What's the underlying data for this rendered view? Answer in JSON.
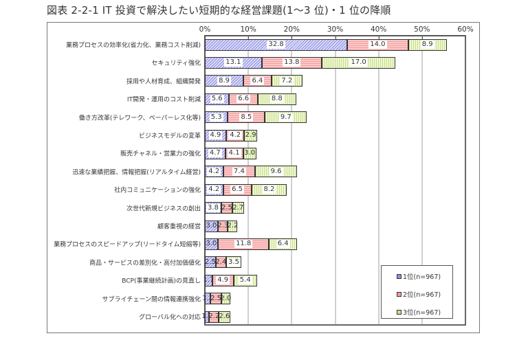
{
  "title": "図表 2-2-1  IT 投資で解決したい短期的な経営課題(1～3 位)・1 位の降順",
  "colors": {
    "rank1": "#c8c8f4",
    "rank2": "#f6b5b5",
    "rank3": "#dfeeb5",
    "axis": "#555555",
    "grid": "#cfcfcf"
  },
  "axis": {
    "ticks": [
      "0%",
      "10%",
      "20%",
      "30%",
      "40%",
      "50%",
      "60%"
    ]
  },
  "legend": {
    "items": [
      "1位(n=967)",
      "2位(n=967)",
      "3位(n=967)"
    ]
  },
  "chart_data": {
    "type": "bar",
    "orientation": "horizontal",
    "stacked": true,
    "title": "図表 2-2-1  IT 投資で解決したい短期的な経営課題(1～3 位)・1 位の降順",
    "xlabel": "",
    "ylabel": "",
    "xlim": [
      0,
      60
    ],
    "x_tick_labels": [
      "0%",
      "10%",
      "20%",
      "30%",
      "40%",
      "50%",
      "60%"
    ],
    "x_axis_position": "top",
    "grid": true,
    "legend_position": "bottom-right inside",
    "categories": [
      "業務プロセスの効率化(省力化、業務コスト削減)",
      "セキュリティ強化",
      "採用や人材育成、組織開発",
      "IT開発・運用のコスト削減",
      "働き方改革(テレワーク、ペーパーレス化等)",
      "ビジネスモデルの変革",
      "販売チャネル・営業力の強化",
      "迅速な業績把握、情報把握(リアルタイム経営)",
      "社内コミュニケーションの強化",
      "次世代新規ビジネスの創出",
      "顧客重視の経営",
      "業務プロセスのスピードアップ(リードタイム短縮等)",
      "商品・サービスの差別化・高付加価値化",
      "BCP(事業継続計画)の見直し",
      "サプライチェーン間の情報連携強化",
      "グローバル化への対応"
    ],
    "series": [
      {
        "name": "1位(n=967)",
        "values": [
          32.8,
          13.1,
          8.9,
          5.6,
          5.3,
          4.9,
          4.7,
          4.2,
          4.2,
          3.8,
          3.0,
          3.0,
          2.5,
          1.7,
          1.3,
          1.0
        ]
      },
      {
        "name": "2位(n=967)",
        "values": [
          14.0,
          13.8,
          6.4,
          6.6,
          8.5,
          4.2,
          4.1,
          7.4,
          6.5,
          2.5,
          2.3,
          11.8,
          2.4,
          4.9,
          2.5,
          2.2
        ]
      },
      {
        "name": "3位(n=967)",
        "values": [
          8.9,
          17.0,
          7.2,
          8.8,
          9.7,
          2.9,
          3.0,
          9.6,
          8.2,
          2.7,
          2.2,
          6.4,
          3.5,
          5.4,
          2.0,
          2.6
        ]
      }
    ]
  }
}
